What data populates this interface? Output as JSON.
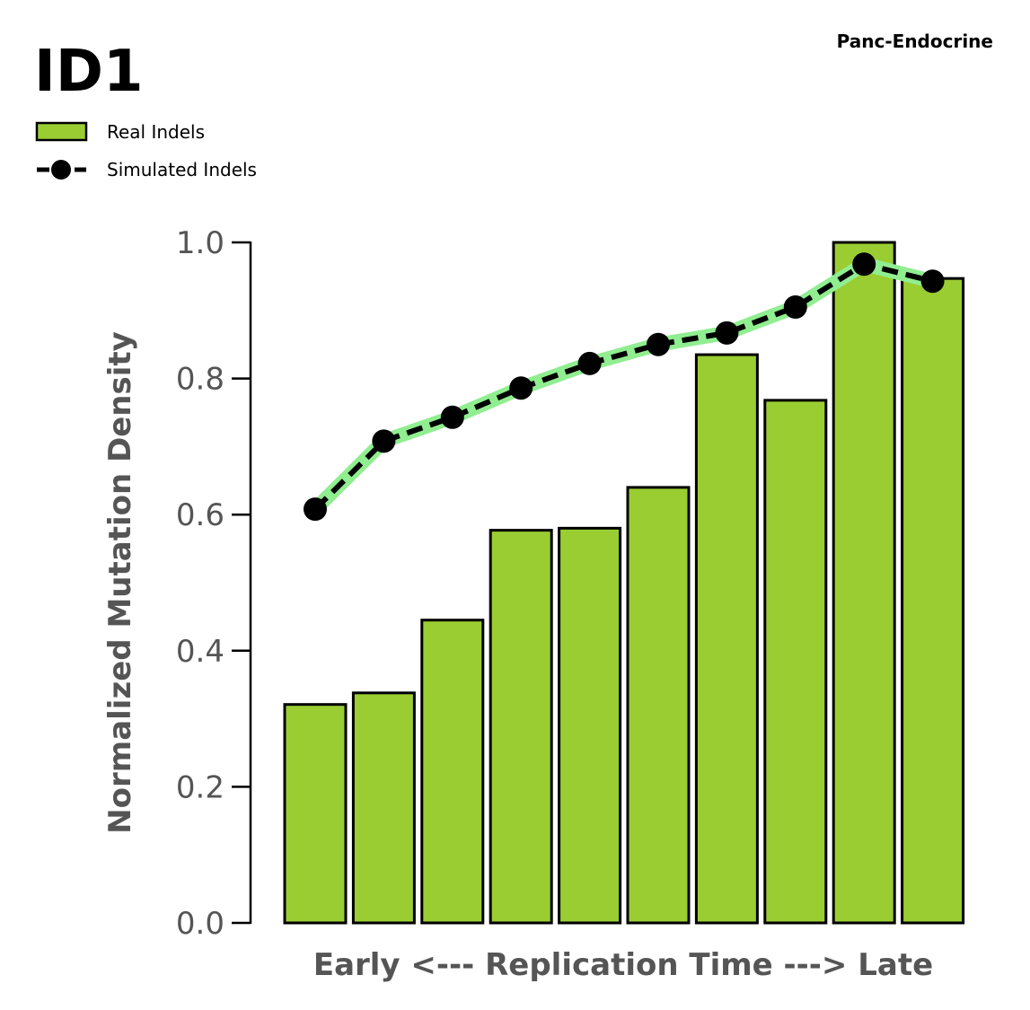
{
  "chart_data": {
    "type": "bar",
    "title": "ID1",
    "subtitle": "Panc-Endocrine",
    "xlabel": "Early <--- Replication Time ---> Late",
    "ylabel": "Normalized Mutation Density",
    "ylim": [
      0,
      1.0
    ],
    "yticks": [
      "0.0",
      "0.2",
      "0.4",
      "0.6",
      "0.8",
      "1.0"
    ],
    "categories": [
      "1",
      "2",
      "3",
      "4",
      "5",
      "6",
      "7",
      "8",
      "9",
      "10"
    ],
    "legend_placement": "top-left",
    "series": [
      {
        "name": "Real Indels",
        "type": "bar",
        "color": "#9acd32",
        "values": [
          0.321,
          0.338,
          0.445,
          0.577,
          0.58,
          0.64,
          0.835,
          0.768,
          1.0,
          0.947
        ]
      },
      {
        "name": "Simulated Indels",
        "type": "line",
        "color": "#000000",
        "halo_color": "#90ee90",
        "values": [
          0.608,
          0.708,
          0.743,
          0.786,
          0.822,
          0.85,
          0.867,
          0.905,
          0.968,
          0.943
        ]
      }
    ]
  }
}
